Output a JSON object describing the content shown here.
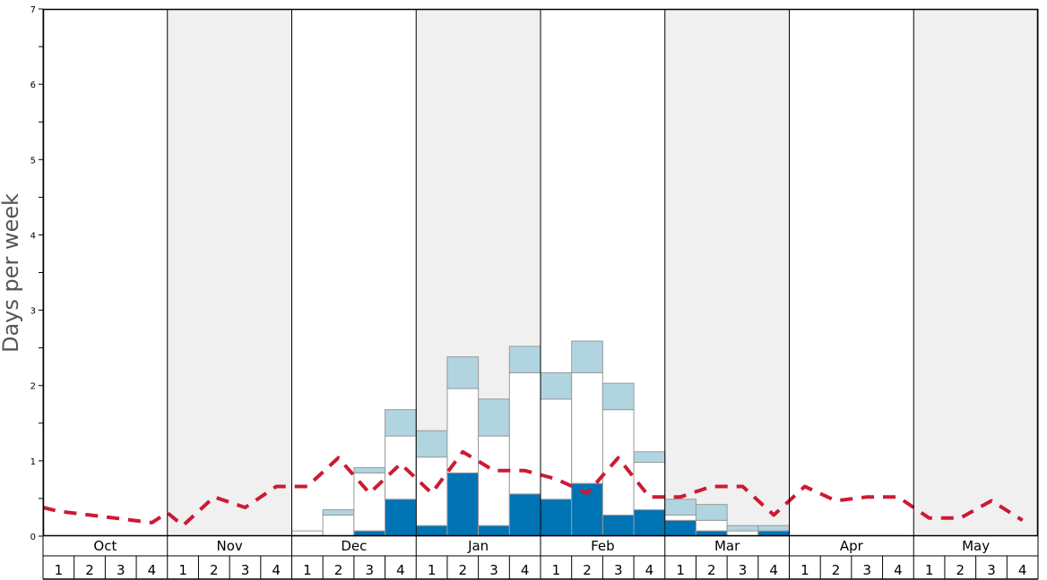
{
  "chart_data": {
    "type": "bar",
    "ylabel": "Days per week",
    "ylim": [
      0,
      7
    ],
    "yticks": [
      "0",
      "1",
      "2",
      "3",
      "4",
      "5",
      "6",
      "7"
    ],
    "months": [
      "Oct",
      "Nov",
      "Dec",
      "Jan",
      "Feb",
      "Mar",
      "Apr",
      "May"
    ],
    "weeks": [
      "1",
      "2",
      "3",
      "4"
    ],
    "shaded_months": [
      "Nov",
      "Jan",
      "Mar",
      "May"
    ],
    "colors": {
      "dark": "#0073b4",
      "mid": "#ffffff",
      "light": "#b0d5e0",
      "line": "#cc1a33",
      "shade": "#f0f0f0"
    },
    "stacks": [
      {
        "month": "Dec",
        "week": 1,
        "dark": 0.0,
        "mid": 0.07,
        "light": 0.0
      },
      {
        "month": "Dec",
        "week": 2,
        "dark": 0.0,
        "mid": 0.28,
        "light": 0.07
      },
      {
        "month": "Dec",
        "week": 3,
        "dark": 0.07,
        "mid": 0.77,
        "light": 0.07
      },
      {
        "month": "Dec",
        "week": 4,
        "dark": 0.49,
        "mid": 0.84,
        "light": 0.35
      },
      {
        "month": "Jan",
        "week": 1,
        "dark": 0.14,
        "mid": 0.91,
        "light": 0.35
      },
      {
        "month": "Jan",
        "week": 2,
        "dark": 0.84,
        "mid": 1.12,
        "light": 0.42
      },
      {
        "month": "Jan",
        "week": 3,
        "dark": 0.14,
        "mid": 1.19,
        "light": 0.49
      },
      {
        "month": "Jan",
        "week": 4,
        "dark": 0.56,
        "mid": 1.61,
        "light": 0.35
      },
      {
        "month": "Feb",
        "week": 1,
        "dark": 0.49,
        "mid": 1.33,
        "light": 0.35
      },
      {
        "month": "Feb",
        "week": 2,
        "dark": 0.7,
        "mid": 1.47,
        "light": 0.42
      },
      {
        "month": "Feb",
        "week": 3,
        "dark": 0.28,
        "mid": 1.4,
        "light": 0.35
      },
      {
        "month": "Feb",
        "week": 4,
        "dark": 0.35,
        "mid": 0.63,
        "light": 0.14
      },
      {
        "month": "Mar",
        "week": 1,
        "dark": 0.21,
        "mid": 0.07,
        "light": 0.21
      },
      {
        "month": "Mar",
        "week": 2,
        "dark": 0.07,
        "mid": 0.14,
        "light": 0.21
      },
      {
        "month": "Mar",
        "week": 3,
        "dark": 0.0,
        "mid": 0.07,
        "light": 0.07
      },
      {
        "month": "Mar",
        "week": 4,
        "dark": 0.07,
        "mid": 0.0,
        "light": 0.07
      }
    ],
    "average_line": [
      {
        "month": "Oct",
        "week": 0,
        "y": 0.38
      },
      {
        "month": "Oct",
        "week": 1,
        "y": 0.33
      },
      {
        "month": "Oct",
        "week": 2,
        "y": 0.28
      },
      {
        "month": "Oct",
        "week": 3,
        "y": 0.23
      },
      {
        "month": "Oct",
        "week": 4,
        "y": 0.18
      },
      {
        "month": "Nov",
        "week": 0,
        "y": 0.31
      },
      {
        "month": "Nov",
        "week": 1,
        "y": 0.14
      },
      {
        "month": "Nov",
        "week": 2,
        "y": 0.52
      },
      {
        "month": "Nov",
        "week": 3,
        "y": 0.38
      },
      {
        "month": "Nov",
        "week": 4,
        "y": 0.66
      },
      {
        "month": "Dec",
        "week": 1,
        "y": 0.66
      },
      {
        "month": "Dec",
        "week": 2,
        "y": 1.04
      },
      {
        "month": "Dec",
        "week": 3,
        "y": 0.57
      },
      {
        "month": "Dec",
        "week": 4,
        "y": 0.96
      },
      {
        "month": "Jan",
        "week": 1,
        "y": 0.57
      },
      {
        "month": "Jan",
        "week": 2,
        "y": 1.12
      },
      {
        "month": "Jan",
        "week": 3,
        "y": 0.87
      },
      {
        "month": "Jan",
        "week": 4,
        "y": 0.87
      },
      {
        "month": "Feb",
        "week": 1,
        "y": 0.76
      },
      {
        "month": "Feb",
        "week": 2,
        "y": 0.57
      },
      {
        "month": "Feb",
        "week": 3,
        "y": 1.04
      },
      {
        "month": "Feb",
        "week": 4,
        "y": 0.52
      },
      {
        "month": "Mar",
        "week": 1,
        "y": 0.52
      },
      {
        "month": "Mar",
        "week": 2,
        "y": 0.66
      },
      {
        "month": "Mar",
        "week": 3,
        "y": 0.66
      },
      {
        "month": "Mar",
        "week": 4,
        "y": 0.28
      },
      {
        "month": "Apr",
        "week": 1,
        "y": 0.66
      },
      {
        "month": "Apr",
        "week": 2,
        "y": 0.47
      },
      {
        "month": "Apr",
        "week": 3,
        "y": 0.52
      },
      {
        "month": "Apr",
        "week": 4,
        "y": 0.52
      },
      {
        "month": "May",
        "week": 1,
        "y": 0.24
      },
      {
        "month": "May",
        "week": 2,
        "y": 0.24
      },
      {
        "month": "May",
        "week": 3,
        "y": 0.47
      },
      {
        "month": "May",
        "week": 4,
        "y": 0.21
      }
    ]
  }
}
